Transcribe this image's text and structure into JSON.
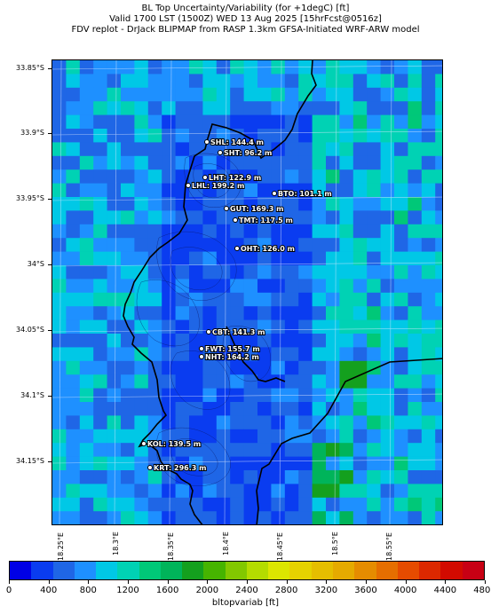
{
  "title": {
    "line1": "BL Top Uncertainty/Variability (for +1degC) [ft]",
    "line2": "Valid 1700 LST (1500Z) WED 13 Aug 2025 [15hrFcst@0516z]",
    "line3": "FDV replot - DrJack BLIPMAP from RASP 1.3km GFSA-Initiated WRF-ARW model"
  },
  "axes": {
    "lat_labels": [
      "33.85°S",
      "33.9°S",
      "33.95°S",
      "34°S",
      "34.05°S",
      "34.1°S",
      "34.15°S"
    ],
    "lon_labels": [
      "18.25°E",
      "18.3°E",
      "18.35°E",
      "18.4°E",
      "18.45°E",
      "18.5°E",
      "18.55°E"
    ]
  },
  "stations": [
    {
      "code": "SHL",
      "value": "144.4 m",
      "label": "SHL: 144.4 m"
    },
    {
      "code": "SHT",
      "value": "96.2 m",
      "label": "SHT: 96.2 m"
    },
    {
      "code": "LHT",
      "value": "122.9 m",
      "label": "LHT: 122.9 m"
    },
    {
      "code": "LHL",
      "value": "199.2 m",
      "label": "LHL: 199.2 m"
    },
    {
      "code": "BTO",
      "value": "101.1 m",
      "label": "BTO: 101.1 m"
    },
    {
      "code": "GUT",
      "value": "169.3 m",
      "label": "GUT: 169.3 m"
    },
    {
      "code": "TMT",
      "value": "117.5 m",
      "label": "TMT: 117.5 m"
    },
    {
      "code": "OHT",
      "value": "126.0 m",
      "label": "OHT: 126.0 m"
    },
    {
      "code": "CBT",
      "value": "141.3 m",
      "label": "CBT: 141.3 m"
    },
    {
      "code": "FWT",
      "value": "155.7 m",
      "label": "FWT: 155.7 m"
    },
    {
      "code": "NHT",
      "value": "164.2 m",
      "label": "NHT: 164.2 m"
    },
    {
      "code": "KOL",
      "value": "139.5 m",
      "label": "KOL: 139.5 m"
    },
    {
      "code": "KRT",
      "value": "296.3 m",
      "label": "KRT: 296.3 m"
    }
  ],
  "colorbar": {
    "title": "bltopvariab [ft]",
    "tick_labels": [
      "0",
      "400",
      "800",
      "1200",
      "1600",
      "2000",
      "2400",
      "2800",
      "3200",
      "3600",
      "4000",
      "4400",
      "4800"
    ],
    "colors": [
      "#0000e6",
      "#0a3cf0",
      "#1f66e6",
      "#1e90ff",
      "#00c8e6",
      "#00d2b4",
      "#00c878",
      "#00b45a",
      "#14a01e",
      "#46b400",
      "#82c800",
      "#b4dc00",
      "#dce600",
      "#e6d200",
      "#e6be00",
      "#e6aa00",
      "#e68c00",
      "#e66e00",
      "#e64b00",
      "#dc2800",
      "#d20a00",
      "#c80014"
    ]
  }
}
